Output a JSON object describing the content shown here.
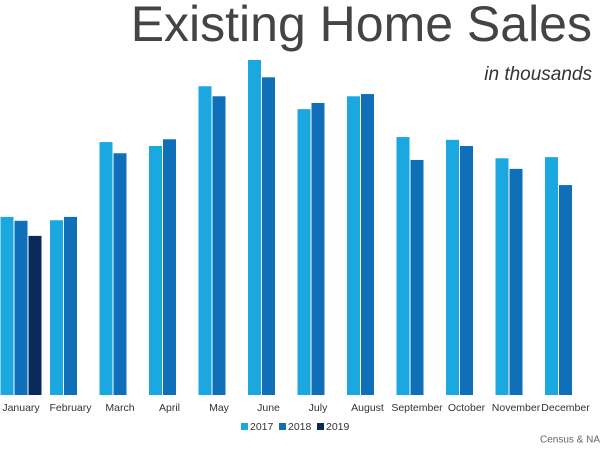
{
  "chart_data": {
    "type": "bar",
    "title": "Existing Home Sales",
    "subtitle": "in thousands",
    "source": "Census & NAR",
    "categories": [
      "January",
      "February",
      "March",
      "April",
      "May",
      "June",
      "July",
      "August",
      "September",
      "October",
      "November",
      "December"
    ],
    "series": [
      {
        "name": "2017",
        "color": "#1ba8e1",
        "values": [
          319,
          313,
          453,
          446,
          553,
          600,
          512,
          535,
          462,
          457,
          424,
          426
        ]
      },
      {
        "name": "2018",
        "color": "#0f6fb9",
        "values": [
          312,
          319,
          433,
          458,
          535,
          569,
          523,
          539,
          421,
          446,
          405,
          376
        ]
      },
      {
        "name": "2019",
        "color": "#0b2a5c",
        "values": [
          285,
          null,
          null,
          null,
          null,
          null,
          null,
          null,
          null,
          null,
          null,
          null
        ]
      }
    ],
    "ylim": [
      0,
      600
    ]
  }
}
